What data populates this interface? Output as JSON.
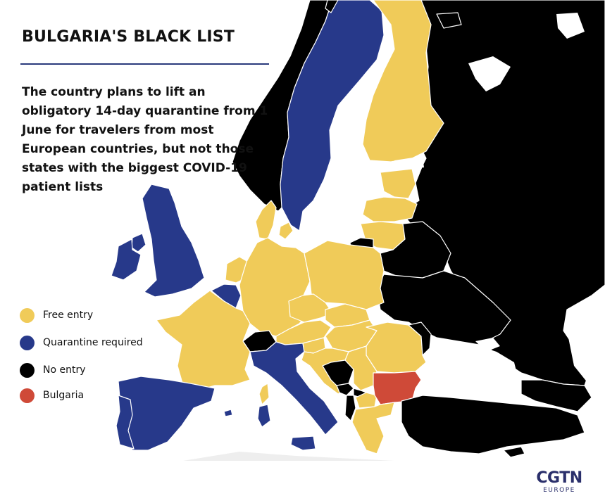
{
  "title": "BULGARIA'S BLACK LIST",
  "subtitle": "The country plans to lift an obligatory 14-day quarantine from 1 June for travelers from most European countries, but not those states with the biggest COVID-19 patient lists",
  "legend": {
    "items": [
      {
        "label": "Free entry",
        "color": "#f0cb59"
      },
      {
        "label": "Quarantine required",
        "color": "#27398a"
      },
      {
        "label": "No entry",
        "color": "#000000"
      },
      {
        "label": "Bulgaria",
        "color": "#cf4a38"
      }
    ]
  },
  "colors": {
    "free": "#f0cb59",
    "quarantine": "#27398a",
    "noentry": "#000000",
    "bulgaria": "#cf4a38",
    "sea": "#ffffff",
    "other": "#eeeeee",
    "border": "#ffffff"
  },
  "logo": {
    "main": "CGTN",
    "sub": "EUROPE"
  }
}
